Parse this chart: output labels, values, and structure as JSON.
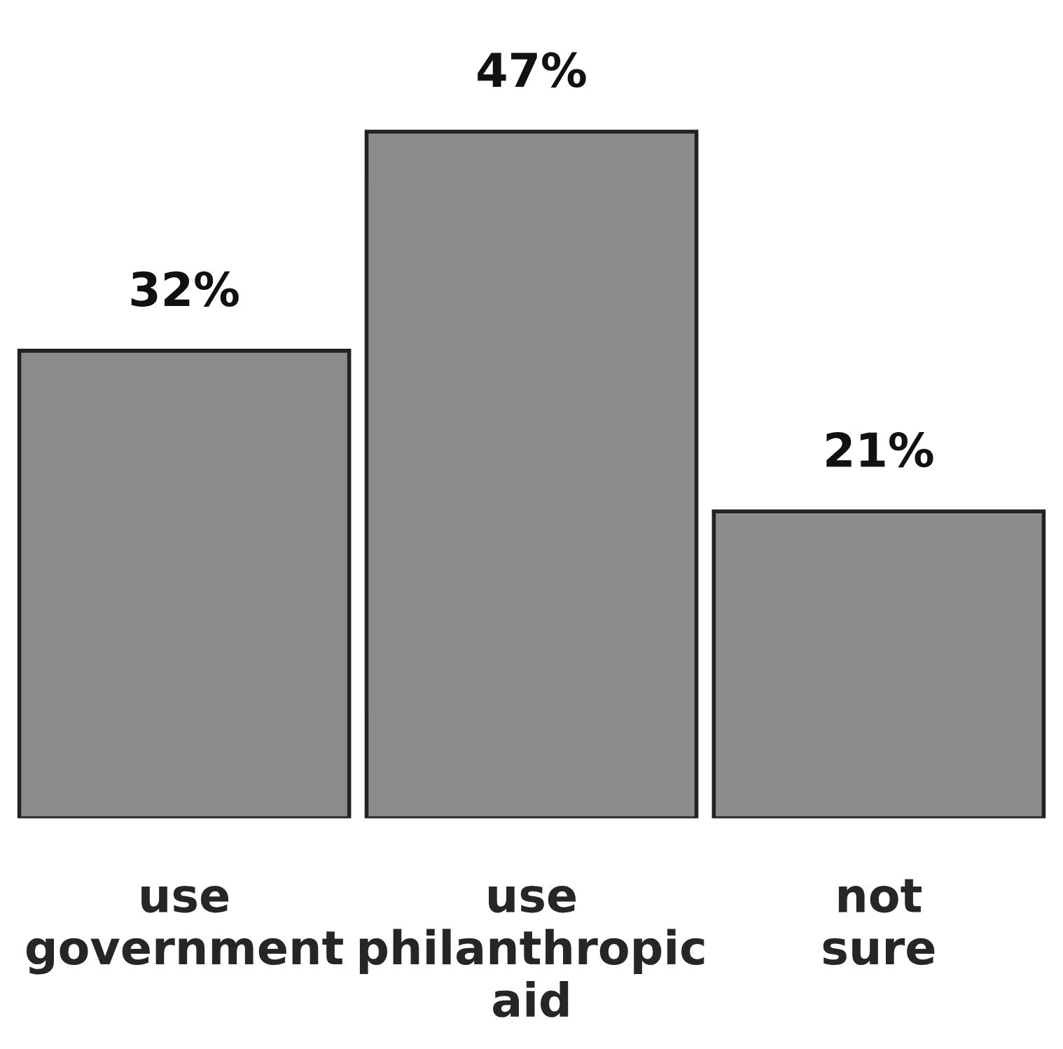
{
  "chart_data": {
    "type": "bar",
    "categories": [
      "use\ngovernment",
      "use\nphilanthropic\naid",
      "not\nsure"
    ],
    "values": [
      32,
      47,
      21
    ],
    "color": "#8c8c8c",
    "data_labels": true,
    "value_labels": [
      "32%",
      "47%",
      "21%"
    ]
  }
}
